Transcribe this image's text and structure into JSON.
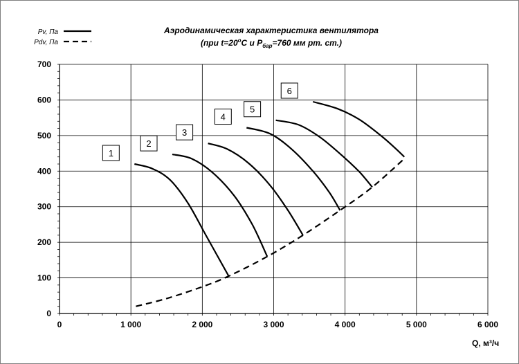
{
  "chart_data": {
    "type": "line",
    "title_line1": "Аэродинамическая характеристика вентилятора",
    "title_line2_prefix": "(при t=20",
    "title_line2_deg": "o",
    "title_line2_mid": "С и P",
    "title_line2_sub": "бар",
    "title_line2_suffix": "=760 мм рт. ст.)",
    "xlabel": "Q, м³/ч",
    "xlim": [
      0,
      6000
    ],
    "ylim": [
      0,
      700
    ],
    "x_ticks": [
      0,
      1000,
      2000,
      3000,
      4000,
      5000,
      6000
    ],
    "x_tick_labels": [
      "0",
      "1 000",
      "2 000",
      "3 000",
      "4 000",
      "5 000",
      "6 000"
    ],
    "y_ticks": [
      0,
      100,
      200,
      300,
      400,
      500,
      600,
      700
    ],
    "y_tick_labels": [
      "0",
      "100",
      "200",
      "300",
      "400",
      "500",
      "600",
      "700"
    ],
    "grid": true,
    "legend": [
      {
        "label": "Pv, Па",
        "style": "solid"
      },
      {
        "label": "Pdv, Па",
        "style": "dashed"
      }
    ],
    "series": [
      {
        "label": "1",
        "style": "solid",
        "x": [
          1050,
          1300,
          1550,
          1800,
          2050,
          2370
        ],
        "y": [
          420,
          407,
          375,
          310,
          220,
          105
        ]
      },
      {
        "label": "2",
        "style": "solid",
        "x": [
          1580,
          1850,
          2150,
          2450,
          2700,
          2910
        ],
        "y": [
          447,
          435,
          395,
          330,
          250,
          160
        ]
      },
      {
        "label": "3",
        "style": "solid",
        "x": [
          2080,
          2350,
          2650,
          2950,
          3200,
          3410
        ],
        "y": [
          478,
          462,
          422,
          360,
          290,
          220
        ]
      },
      {
        "label": "4",
        "style": "solid",
        "x": [
          2620,
          2950,
          3250,
          3550,
          3780,
          3930
        ],
        "y": [
          522,
          505,
          462,
          400,
          340,
          290
        ]
      },
      {
        "label": "5",
        "style": "solid",
        "x": [
          3030,
          3350,
          3650,
          3950,
          4200,
          4380
        ],
        "y": [
          543,
          530,
          495,
          445,
          398,
          355
        ]
      },
      {
        "label": "6",
        "style": "solid",
        "x": [
          3550,
          3900,
          4200,
          4500,
          4700,
          4830
        ],
        "y": [
          595,
          575,
          545,
          500,
          465,
          440
        ]
      },
      {
        "label": "",
        "style": "dashed",
        "x": [
          1070,
          1500,
          2000,
          2370,
          2910,
          3410,
          3930,
          4380,
          4830
        ],
        "y": [
          20,
          42,
          75,
          105,
          160,
          220,
          290,
          355,
          435
        ]
      }
    ]
  }
}
